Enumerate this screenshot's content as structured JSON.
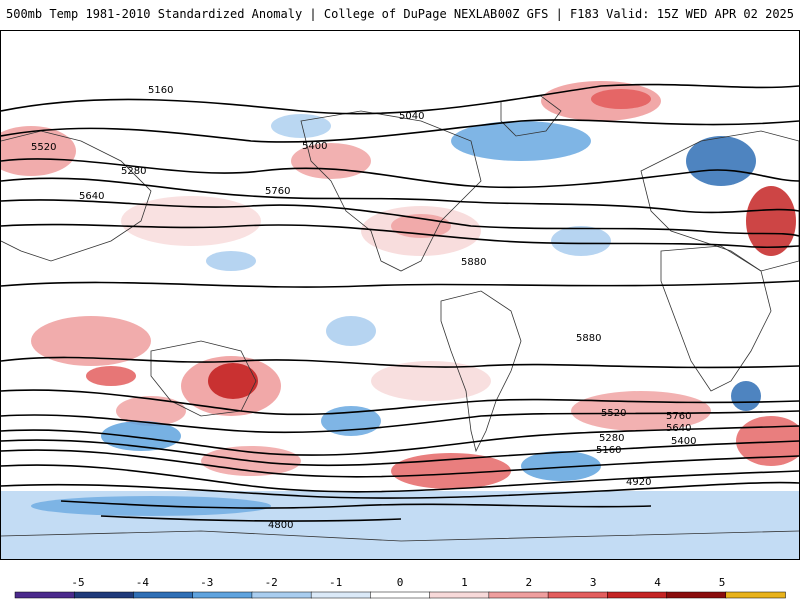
{
  "header": {
    "left_title": "500mb Temp 1981-2010 Standardized Anomaly | College of DuPage NEXLAB",
    "right_title": "00Z GFS | F183 Valid: 15Z WED APR 02 2025"
  },
  "map": {
    "projection": "global cylindrical",
    "contour_labels": [
      "5160",
      "5040",
      "5520",
      "5280",
      "5400",
      "5640",
      "5760",
      "5880",
      "4920",
      "4800",
      "5160",
      "5280",
      "5400",
      "5520",
      "5640",
      "5760",
      "5880"
    ]
  },
  "colorbar": {
    "tick_labels": [
      "-5",
      "-4",
      "-3",
      "-2",
      "-1",
      "0",
      "1",
      "2",
      "3",
      "4",
      "5"
    ],
    "colors": [
      "#4b2a8c",
      "#1f3a7a",
      "#2f6fb5",
      "#5fa3de",
      "#a9cdef",
      "#dbe9f7",
      "#ffffff",
      "#f7d9d9",
      "#ef9e9e",
      "#e35e5e",
      "#c42424",
      "#8a0d0d",
      "#e8b21b"
    ]
  }
}
